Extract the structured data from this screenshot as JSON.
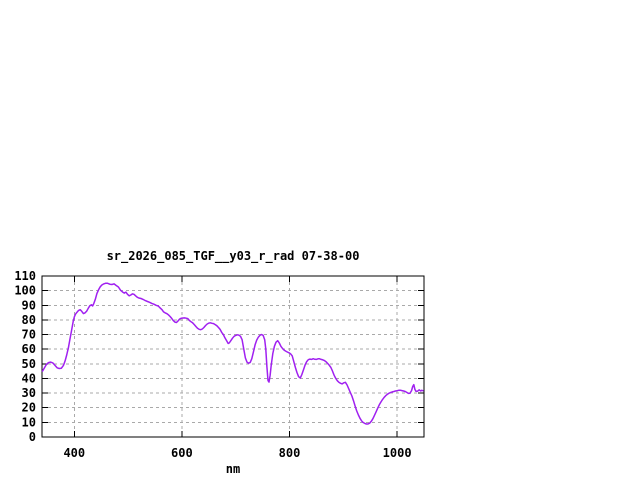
{
  "chart_data": {
    "type": "line",
    "title": "sr_2026_085_TGF__y03_r_rad 07-38-00",
    "xlabel": "nm",
    "ylabel": "",
    "xlim": [
      340,
      1050
    ],
    "ylim": [
      0,
      110
    ],
    "xticks": [
      400,
      600,
      800,
      1000
    ],
    "yticks": [
      0,
      10,
      20,
      30,
      40,
      50,
      60,
      70,
      80,
      90,
      100,
      110
    ],
    "grid": true,
    "legend": "none",
    "colors": {
      "axis": "#000000",
      "grid": "#a9a9a9",
      "background": "#ffffff"
    },
    "series": [
      {
        "name": "sr_2026_085_TGF__y03_r_rad",
        "color": "#a020f0",
        "points": [
          [
            341,
            45
          ],
          [
            344,
            47
          ],
          [
            348,
            49.5
          ],
          [
            352,
            50.8
          ],
          [
            356,
            51.2
          ],
          [
            360,
            50.6
          ],
          [
            364,
            49
          ],
          [
            368,
            47.3
          ],
          [
            372,
            46.8
          ],
          [
            376,
            47
          ],
          [
            380,
            49
          ],
          [
            383,
            52
          ],
          [
            386,
            56
          ],
          [
            389,
            61
          ],
          [
            392,
            67
          ],
          [
            395,
            73
          ],
          [
            398,
            79
          ],
          [
            400,
            82
          ],
          [
            402,
            83.8
          ],
          [
            405,
            85.3
          ],
          [
            408,
            86.5
          ],
          [
            411,
            87
          ],
          [
            414,
            85.8
          ],
          [
            417,
            84.3
          ],
          [
            420,
            84.8
          ],
          [
            423,
            86
          ],
          [
            426,
            88
          ],
          [
            429,
            89.7
          ],
          [
            432,
            90.3
          ],
          [
            434,
            89.5
          ],
          [
            436,
            91
          ],
          [
            439,
            94
          ],
          [
            442,
            98
          ],
          [
            445,
            100.5
          ],
          [
            448,
            102.5
          ],
          [
            451,
            103.8
          ],
          [
            454,
            104.5
          ],
          [
            458,
            105
          ],
          [
            462,
            105
          ],
          [
            466,
            104.4
          ],
          [
            470,
            104.2
          ],
          [
            474,
            104.6
          ],
          [
            478,
            103.5
          ],
          [
            482,
            102.5
          ],
          [
            486,
            100.2
          ],
          [
            490,
            99
          ],
          [
            493,
            98.3
          ],
          [
            496,
            99
          ],
          [
            499,
            97.5
          ],
          [
            502,
            96.5
          ],
          [
            505,
            97
          ],
          [
            508,
            97.8
          ],
          [
            511,
            97.5
          ],
          [
            514,
            96.5
          ],
          [
            517,
            95.5
          ],
          [
            520,
            95
          ],
          [
            524,
            94.6
          ],
          [
            528,
            94
          ],
          [
            532,
            93.2
          ],
          [
            536,
            92.6
          ],
          [
            540,
            92
          ],
          [
            544,
            91.3
          ],
          [
            548,
            90.7
          ],
          [
            552,
            90
          ],
          [
            556,
            89.5
          ],
          [
            560,
            88
          ],
          [
            563,
            87
          ],
          [
            566,
            85.5
          ],
          [
            569,
            84.8
          ],
          [
            572,
            84.3
          ],
          [
            575,
            83.5
          ],
          [
            578,
            82.3
          ],
          [
            581,
            81
          ],
          [
            584,
            79.5
          ],
          [
            587,
            78.5
          ],
          [
            590,
            78.2
          ],
          [
            593,
            79.3
          ],
          [
            596,
            80.6
          ],
          [
            599,
            81.2
          ],
          [
            602,
            81.3
          ],
          [
            605,
            81.4
          ],
          [
            608,
            81.2
          ],
          [
            611,
            80.9
          ],
          [
            614,
            79.6
          ],
          [
            617,
            78.8
          ],
          [
            620,
            78
          ],
          [
            623,
            76.8
          ],
          [
            626,
            75.5
          ],
          [
            629,
            74.3
          ],
          [
            632,
            73.6
          ],
          [
            635,
            73.3
          ],
          [
            638,
            73.8
          ],
          [
            641,
            74.8
          ],
          [
            644,
            76.2
          ],
          [
            647,
            77.2
          ],
          [
            650,
            77.8
          ],
          [
            653,
            78
          ],
          [
            656,
            77.7
          ],
          [
            659,
            77.5
          ],
          [
            662,
            76.8
          ],
          [
            665,
            76
          ],
          [
            668,
            74.8
          ],
          [
            671,
            73.5
          ],
          [
            674,
            71.5
          ],
          [
            677,
            70
          ],
          [
            680,
            67.8
          ],
          [
            683,
            65.9
          ],
          [
            686,
            63.9
          ],
          [
            688,
            64.2
          ],
          [
            691,
            65.8
          ],
          [
            694,
            67.5
          ],
          [
            697,
            68.8
          ],
          [
            700,
            69.4
          ],
          [
            703,
            69.8
          ],
          [
            706,
            69.6
          ],
          [
            709,
            68.8
          ],
          [
            712,
            66.5
          ],
          [
            715,
            60
          ],
          [
            718,
            54
          ],
          [
            721,
            51.2
          ],
          [
            724,
            50.4
          ],
          [
            727,
            51
          ],
          [
            730,
            53.5
          ],
          [
            733,
            58
          ],
          [
            736,
            63
          ],
          [
            739,
            66.2
          ],
          [
            742,
            68.2
          ],
          [
            745,
            69.4
          ],
          [
            748,
            70
          ],
          [
            751,
            69.5
          ],
          [
            754,
            66.5
          ],
          [
            756,
            60
          ],
          [
            758,
            48
          ],
          [
            760,
            38.5
          ],
          [
            762,
            37.5
          ],
          [
            764,
            42
          ],
          [
            766,
            49
          ],
          [
            769,
            57
          ],
          [
            772,
            62
          ],
          [
            775,
            64.8
          ],
          [
            778,
            65.8
          ],
          [
            781,
            64.2
          ],
          [
            784,
            62
          ],
          [
            787,
            60.5
          ],
          [
            790,
            59.4
          ],
          [
            793,
            58.7
          ],
          [
            796,
            58.1
          ],
          [
            799,
            57.5
          ],
          [
            802,
            56.8
          ],
          [
            805,
            55.5
          ],
          [
            808,
            51.5
          ],
          [
            811,
            47.5
          ],
          [
            814,
            44
          ],
          [
            817,
            41.2
          ],
          [
            820,
            40.3
          ],
          [
            823,
            42.8
          ],
          [
            826,
            46
          ],
          [
            829,
            49.2
          ],
          [
            832,
            51.5
          ],
          [
            835,
            52.8
          ],
          [
            838,
            53.2
          ],
          [
            841,
            53
          ],
          [
            844,
            53.5
          ],
          [
            847,
            53.1
          ],
          [
            850,
            53
          ],
          [
            853,
            53.4
          ],
          [
            856,
            53.4
          ],
          [
            859,
            53
          ],
          [
            862,
            52.7
          ],
          [
            865,
            52.2
          ],
          [
            868,
            51.4
          ],
          [
            871,
            50.2
          ],
          [
            874,
            49
          ],
          [
            877,
            47.5
          ],
          [
            880,
            45
          ],
          [
            883,
            42.2
          ],
          [
            886,
            40
          ],
          [
            889,
            38.4
          ],
          [
            892,
            37.3
          ],
          [
            895,
            36.7
          ],
          [
            898,
            36.3
          ],
          [
            901,
            37
          ],
          [
            904,
            37.4
          ],
          [
            907,
            35.5
          ],
          [
            910,
            33
          ],
          [
            913,
            30.5
          ],
          [
            916,
            28
          ],
          [
            919,
            24.8
          ],
          [
            922,
            21.2
          ],
          [
            925,
            17.8
          ],
          [
            928,
            15
          ],
          [
            931,
            12.8
          ],
          [
            934,
            11
          ],
          [
            937,
            9.9
          ],
          [
            940,
            9.3
          ],
          [
            943,
            8.9
          ],
          [
            946,
            8.9
          ],
          [
            949,
            9.5
          ],
          [
            952,
            10.7
          ],
          [
            955,
            12.5
          ],
          [
            958,
            14.8
          ],
          [
            961,
            17.2
          ],
          [
            964,
            19.7
          ],
          [
            967,
            22
          ],
          [
            970,
            24
          ],
          [
            973,
            25.7
          ],
          [
            976,
            27.1
          ],
          [
            979,
            28.3
          ],
          [
            982,
            29.2
          ],
          [
            985,
            29.9
          ],
          [
            988,
            30.4
          ],
          [
            991,
            30.8
          ],
          [
            994,
            31.1
          ],
          [
            997,
            31.4
          ],
          [
            1000,
            31.6
          ],
          [
            1003,
            31.9
          ],
          [
            1006,
            32
          ],
          [
            1009,
            31.7
          ],
          [
            1012,
            31.4
          ],
          [
            1015,
            31.1
          ],
          [
            1018,
            30.5
          ],
          [
            1021,
            29.8
          ],
          [
            1024,
            29.9
          ],
          [
            1027,
            31.8
          ],
          [
            1029,
            34.5
          ],
          [
            1031,
            35.8
          ],
          [
            1033,
            32.5
          ],
          [
            1035,
            31.2
          ],
          [
            1038,
            31.3
          ],
          [
            1041,
            32.2
          ],
          [
            1044,
            31.4
          ],
          [
            1046,
            31.9
          ],
          [
            1048,
            31.6
          ]
        ]
      }
    ]
  }
}
